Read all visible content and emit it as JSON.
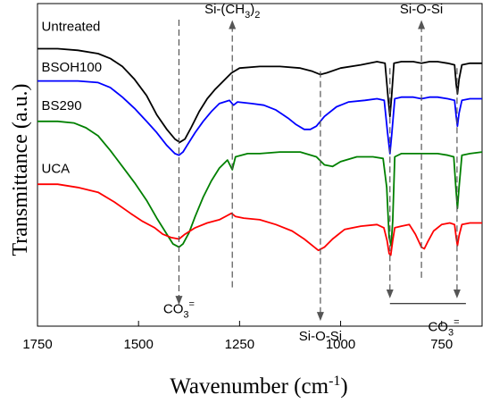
{
  "chart_data": {
    "type": "line",
    "title": "",
    "xlabel": "Wavenumber (cm",
    "xlabel_sup": "-1",
    "xlabel_close": ")",
    "ylabel": "Transmittance (a.u.)",
    "xlim": [
      1750,
      650
    ],
    "x_reversed": true,
    "x_ticks": [
      1750,
      1500,
      1250,
      1000,
      750
    ],
    "grid": false,
    "legend": "none",
    "series": [
      {
        "name": "Untreated",
        "color": "#000000",
        "points": [
          [
            1750,
            72
          ],
          [
            1700,
            72
          ],
          [
            1650,
            71
          ],
          [
            1600,
            69
          ],
          [
            1570,
            66
          ],
          [
            1540,
            61
          ],
          [
            1510,
            53
          ],
          [
            1480,
            43
          ],
          [
            1455,
            31
          ],
          [
            1430,
            22
          ],
          [
            1410,
            16
          ],
          [
            1398,
            14
          ],
          [
            1385,
            16
          ],
          [
            1370,
            23
          ],
          [
            1350,
            33
          ],
          [
            1330,
            41
          ],
          [
            1310,
            47
          ],
          [
            1290,
            52
          ],
          [
            1270,
            57
          ],
          [
            1250,
            60
          ],
          [
            1200,
            61
          ],
          [
            1150,
            61
          ],
          [
            1100,
            60
          ],
          [
            1070,
            58
          ],
          [
            1050,
            56
          ],
          [
            1035,
            57
          ],
          [
            1000,
            60
          ],
          [
            950,
            62
          ],
          [
            910,
            64
          ],
          [
            890,
            63
          ],
          [
            882,
            40
          ],
          [
            878,
            30
          ],
          [
            874,
            42
          ],
          [
            868,
            63
          ],
          [
            850,
            64
          ],
          [
            820,
            64
          ],
          [
            800,
            63
          ],
          [
            780,
            64
          ],
          [
            760,
            64
          ],
          [
            735,
            63
          ],
          [
            718,
            62
          ],
          [
            714,
            50
          ],
          [
            711,
            44
          ],
          [
            707,
            53
          ],
          [
            700,
            62
          ],
          [
            680,
            63
          ],
          [
            650,
            63
          ]
        ]
      },
      {
        "name": "BSOH100",
        "color": "#0000ff",
        "points": [
          [
            1750,
            52
          ],
          [
            1700,
            52
          ],
          [
            1650,
            52
          ],
          [
            1600,
            51
          ],
          [
            1570,
            48
          ],
          [
            1540,
            42
          ],
          [
            1510,
            35
          ],
          [
            1480,
            27
          ],
          [
            1455,
            20
          ],
          [
            1430,
            12
          ],
          [
            1410,
            7
          ],
          [
            1400,
            6
          ],
          [
            1390,
            8
          ],
          [
            1380,
            12
          ],
          [
            1360,
            20
          ],
          [
            1340,
            27
          ],
          [
            1320,
            33
          ],
          [
            1300,
            38
          ],
          [
            1275,
            40
          ],
          [
            1265,
            37
          ],
          [
            1255,
            39
          ],
          [
            1220,
            38
          ],
          [
            1190,
            37
          ],
          [
            1160,
            34
          ],
          [
            1130,
            29
          ],
          [
            1110,
            25
          ],
          [
            1090,
            22
          ],
          [
            1075,
            22
          ],
          [
            1060,
            24
          ],
          [
            1040,
            30
          ],
          [
            1010,
            36
          ],
          [
            980,
            39
          ],
          [
            940,
            40
          ],
          [
            910,
            41
          ],
          [
            892,
            40
          ],
          [
            884,
            20
          ],
          [
            878,
            7
          ],
          [
            873,
            20
          ],
          [
            866,
            41
          ],
          [
            850,
            42
          ],
          [
            820,
            42
          ],
          [
            800,
            41
          ],
          [
            780,
            42
          ],
          [
            760,
            42
          ],
          [
            735,
            41
          ],
          [
            718,
            40
          ],
          [
            714,
            30
          ],
          [
            711,
            24
          ],
          [
            707,
            32
          ],
          [
            700,
            40
          ],
          [
            680,
            41
          ],
          [
            650,
            41
          ]
        ]
      },
      {
        "name": "BS290",
        "color": "#008000",
        "points": [
          [
            1750,
            27
          ],
          [
            1700,
            27
          ],
          [
            1660,
            26
          ],
          [
            1630,
            23
          ],
          [
            1600,
            18
          ],
          [
            1570,
            9
          ],
          [
            1540,
            -1
          ],
          [
            1510,
            -11
          ],
          [
            1480,
            -22
          ],
          [
            1455,
            -33
          ],
          [
            1430,
            -43
          ],
          [
            1415,
            -49
          ],
          [
            1400,
            -51
          ],
          [
            1390,
            -49
          ],
          [
            1375,
            -42
          ],
          [
            1360,
            -32
          ],
          [
            1340,
            -20
          ],
          [
            1320,
            -10
          ],
          [
            1300,
            -2
          ],
          [
            1280,
            3
          ],
          [
            1268,
            -3
          ],
          [
            1260,
            5
          ],
          [
            1230,
            7
          ],
          [
            1200,
            7
          ],
          [
            1150,
            8
          ],
          [
            1100,
            8
          ],
          [
            1060,
            5
          ],
          [
            1040,
            0
          ],
          [
            1020,
            -1
          ],
          [
            1000,
            2
          ],
          [
            960,
            5
          ],
          [
            920,
            5
          ],
          [
            895,
            4
          ],
          [
            886,
            -14
          ],
          [
            880,
            -45
          ],
          [
            875,
            -50
          ],
          [
            871,
            -35
          ],
          [
            866,
            5
          ],
          [
            850,
            7
          ],
          [
            820,
            7
          ],
          [
            800,
            7
          ],
          [
            780,
            7
          ],
          [
            760,
            7
          ],
          [
            735,
            6
          ],
          [
            720,
            5
          ],
          [
            715,
            -14
          ],
          [
            711,
            -27
          ],
          [
            707,
            -14
          ],
          [
            700,
            6
          ],
          [
            680,
            7
          ],
          [
            650,
            8
          ]
        ]
      },
      {
        "name": "UCA",
        "color": "#ff0000",
        "points": [
          [
            1750,
            -12
          ],
          [
            1700,
            -12
          ],
          [
            1650,
            -14
          ],
          [
            1600,
            -17
          ],
          [
            1560,
            -23
          ],
          [
            1520,
            -30
          ],
          [
            1490,
            -35
          ],
          [
            1460,
            -39
          ],
          [
            1440,
            -43
          ],
          [
            1420,
            -45
          ],
          [
            1400,
            -46
          ],
          [
            1385,
            -43
          ],
          [
            1360,
            -39
          ],
          [
            1330,
            -36
          ],
          [
            1300,
            -34
          ],
          [
            1270,
            -30
          ],
          [
            1260,
            -32
          ],
          [
            1240,
            -33
          ],
          [
            1200,
            -34
          ],
          [
            1160,
            -37
          ],
          [
            1120,
            -41
          ],
          [
            1090,
            -46
          ],
          [
            1070,
            -50
          ],
          [
            1055,
            -53
          ],
          [
            1040,
            -51
          ],
          [
            1020,
            -46
          ],
          [
            990,
            -40
          ],
          [
            950,
            -38
          ],
          [
            910,
            -37
          ],
          [
            893,
            -39
          ],
          [
            885,
            -47
          ],
          [
            880,
            -55
          ],
          [
            876,
            -56
          ],
          [
            871,
            -47
          ],
          [
            866,
            -39
          ],
          [
            850,
            -38
          ],
          [
            830,
            -37
          ],
          [
            815,
            -43
          ],
          [
            800,
            -51
          ],
          [
            793,
            -52
          ],
          [
            785,
            -48
          ],
          [
            770,
            -41
          ],
          [
            750,
            -37
          ],
          [
            730,
            -36
          ],
          [
            718,
            -37
          ],
          [
            714,
            -45
          ],
          [
            711,
            -50
          ],
          [
            707,
            -44
          ],
          [
            700,
            -37
          ],
          [
            680,
            -36
          ],
          [
            650,
            -36
          ]
        ]
      }
    ],
    "series_labels": [
      {
        "series": 0,
        "text": "Untreated",
        "x": 1740,
        "y": 83
      },
      {
        "series": 1,
        "text": "BSOH100",
        "x": 1740,
        "y": 58
      },
      {
        "series": 2,
        "text": "BS290",
        "x": 1740,
        "y": 34
      },
      {
        "series": 3,
        "text": "UCA",
        "x": 1740,
        "y": -5
      }
    ],
    "ylim": [
      -100,
      100
    ],
    "annotations": [
      {
        "id": "co3-1400",
        "base": "CO",
        "sub": "3",
        "sup": "=",
        "x": 1400,
        "y_line_top": 90,
        "y_line_bottom": -84,
        "label_y": -92,
        "label_anchor": "middle"
      },
      {
        "id": "sich3-1265",
        "base": "Si-(CH",
        "sub": "3",
        "tail": ")",
        "sub2": "2",
        "x": 1268,
        "y_line_top": 87,
        "y_line_bottom": -76,
        "label_y": 94,
        "label_anchor": "middle",
        "arrow_up": true
      },
      {
        "id": "siosi-1050",
        "text": "Si-O-Si",
        "x": 1050,
        "y_line_top": 58,
        "y_line_bottom": -94,
        "label_y": -109,
        "label_anchor": "middle"
      },
      {
        "id": "siosi-800",
        "text": "Si-O-Si",
        "x": 800,
        "y_line_top": 87,
        "y_line_bottom": -70,
        "label_y": 94,
        "label_anchor": "middle",
        "arrow_up": true
      },
      {
        "id": "co3-group",
        "base": "CO",
        "sub": "3",
        "sup": "=",
        "x": 745,
        "label_y": -103,
        "label_anchor": "middle"
      }
    ],
    "co3_group_arrows": [
      878,
      712
    ],
    "co3_group_line": {
      "x1": 878,
      "x2": 690,
      "y": -86
    }
  }
}
